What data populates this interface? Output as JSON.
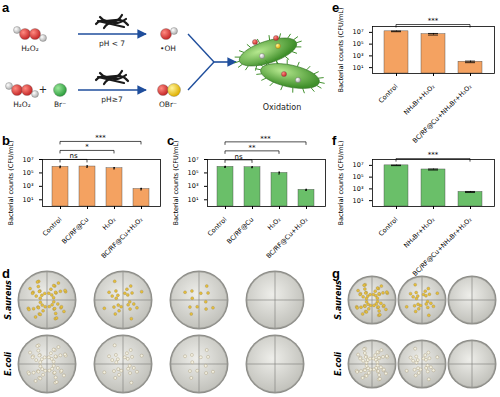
{
  "chart_data": [
    {
      "type": "bar",
      "title": "b",
      "categories": [
        "Control",
        "BC/RF@Cu",
        "H₂O₂",
        "BC/RF@Cu+H₂O₂"
      ],
      "values": [
        800000,
        900000,
        500000,
        400
      ],
      "errors": [
        200000,
        200000,
        100000,
        100
      ],
      "color": "#f4a261",
      "log": "y",
      "ylabel": "Bacterial counts (CFU/mL)",
      "ylim": [
        1,
        10000000
      ],
      "yticks": [
        {
          "value": 10,
          "label": "10¹"
        },
        {
          "value": 1000,
          "label": "10³"
        },
        {
          "value": 100000,
          "label": "10⁵"
        },
        {
          "value": 10000000,
          "label": "10⁷"
        }
      ],
      "significance": [
        {
          "from": "Control",
          "to": "BC/RF@Cu",
          "label": "ns"
        },
        {
          "from": "Control",
          "to": "H₂O₂",
          "label": "*"
        },
        {
          "from": "Control",
          "to": "BC/RF@Cu+H₂O₂",
          "label": "***"
        }
      ]
    },
    {
      "type": "bar",
      "title": "c",
      "categories": [
        "Control",
        "BC/RF@Cu",
        "H₂O₂",
        "BC/RF@Cu+H₂O₂"
      ],
      "values": [
        800000,
        700000,
        100000,
        300
      ],
      "errors": [
        150000,
        100000,
        30000,
        60
      ],
      "color": "#6abf69",
      "log": "y",
      "ylabel": "Bacterial counts (CFU/mL)",
      "ylim": [
        1,
        10000000
      ],
      "yticks": [
        {
          "value": 10,
          "label": "10¹"
        },
        {
          "value": 1000,
          "label": "10³"
        },
        {
          "value": 100000,
          "label": "10⁵"
        },
        {
          "value": 10000000,
          "label": "10⁷"
        }
      ],
      "significance": [
        {
          "from": "Control",
          "to": "BC/RF@Cu",
          "label": "ns"
        },
        {
          "from": "Control",
          "to": "H₂O₂",
          "label": "**"
        },
        {
          "from": "Control",
          "to": "BC/RF@Cu+H₂O₂",
          "label": "***"
        }
      ]
    },
    {
      "type": "bar",
      "title": "e",
      "categories": [
        "Control",
        "NH₄Br+H₂O₂",
        "BC/RF@Cu+NH₄Br+H₂O₂"
      ],
      "values": [
        15000000,
        5000000,
        100
      ],
      "errors": [
        2000000,
        1500000,
        30
      ],
      "color": "#f4a261",
      "log": "y",
      "ylabel": "Bacterial counts (CFU/mL)",
      "ylim": [
        1,
        100000000
      ],
      "yticks": [
        {
          "value": 10,
          "label": "10¹"
        },
        {
          "value": 1000,
          "label": "10³"
        },
        {
          "value": 100000,
          "label": "10⁵"
        },
        {
          "value": 10000000,
          "label": "10⁷"
        }
      ],
      "significance": [
        {
          "from": "Control",
          "to": "BC/RF@Cu+NH₄Br+H₂O₂",
          "label": "***"
        }
      ]
    },
    {
      "type": "bar",
      "title": "f",
      "categories": [
        "Control",
        "NH₄Br+H₂O₂",
        "BC/RF@Cu+NH₄Br+H₂O₂"
      ],
      "values": [
        10000000,
        2000000,
        300
      ],
      "errors": [
        1000000,
        400000,
        60
      ],
      "color": "#6abf69",
      "log": "y",
      "ylabel": "Bacterial counts (CFU/mL)",
      "ylim": [
        1,
        100000000
      ],
      "yticks": [
        {
          "value": 10,
          "label": "10¹"
        },
        {
          "value": 1000,
          "label": "10³"
        },
        {
          "value": 100000,
          "label": "10⁵"
        },
        {
          "value": 10000000,
          "label": "10⁷"
        }
      ],
      "significance": [
        {
          "from": "Control",
          "to": "BC/RF@Cu+NH₄Br+H₂O₂",
          "label": "***"
        }
      ]
    }
  ],
  "diagram": {
    "title": "a",
    "rows": [
      {
        "reactants": [
          "H₂O₂"
        ],
        "condition": "pH < 7",
        "product": "•OH"
      },
      {
        "reactants": [
          "H₂O₂",
          "Br⁻"
        ],
        "operator": "+",
        "condition": "pH≥7",
        "product": "OBr⁻"
      }
    ],
    "result": "Oxidation"
  },
  "photos": [
    {
      "title": "d",
      "rows": [
        "S.aureus",
        "E.coli"
      ],
      "dishes": 4
    },
    {
      "title": "g",
      "rows": [
        "S.aureus",
        "E.coli"
      ],
      "dishes": 3
    }
  ]
}
